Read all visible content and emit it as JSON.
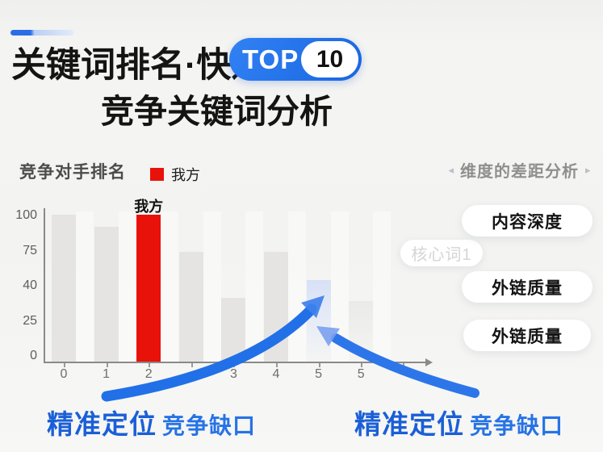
{
  "header": {
    "title_main": "关键词排名",
    "title_dot": "·",
    "title_suffix": "快速",
    "badge_label": "TOP",
    "badge_number": "10",
    "subtitle": "竞争关键词分析"
  },
  "chart_data": {
    "type": "bar",
    "title": "竞争对手排名",
    "legend": [
      {
        "label": "我方",
        "color": "#e8120a"
      }
    ],
    "ylim": [
      0,
      100
    ],
    "y_tick_labels": [
      "100",
      "75",
      "40",
      "25",
      "0"
    ],
    "x_tick_labels": [
      "0",
      "1",
      "2",
      "",
      "3",
      "4",
      "5",
      "5"
    ],
    "bars": [
      {
        "x": "0",
        "value": 100,
        "style": "gray"
      },
      {
        "x": "1",
        "value": 92,
        "style": "gray"
      },
      {
        "x": "2",
        "value": 100,
        "style": "highlight-red",
        "label": "我方"
      },
      {
        "x": "",
        "value": 75,
        "style": "gray"
      },
      {
        "x": "3",
        "value": 44,
        "style": "gray"
      },
      {
        "x": "4",
        "value": 75,
        "style": "gray"
      },
      {
        "x": "5",
        "value": 56,
        "style": "faded-blue"
      },
      {
        "x": "5",
        "value": 42,
        "style": "faded-gray"
      }
    ],
    "grid": false,
    "legend_position": "top"
  },
  "watermark_label": "核心词1",
  "panel": {
    "arrow_left": "◂",
    "header": "维度的差距分析",
    "arrow_right": "▸",
    "pills": [
      "内容深度",
      "外链质量",
      "外链质量"
    ]
  },
  "callouts": {
    "left": {
      "bold": "精准定位",
      "rest": "竞争缺口"
    },
    "right": {
      "bold": "精准定位",
      "rest": "竞争缺口"
    }
  },
  "colors": {
    "accent_blue": "#2273e8",
    "bar_red": "#e8120a",
    "bar_gray": "#e5e4e2",
    "faded_blue_bar": "#d7e1f6",
    "callout_blue": "#1a5fd7"
  }
}
